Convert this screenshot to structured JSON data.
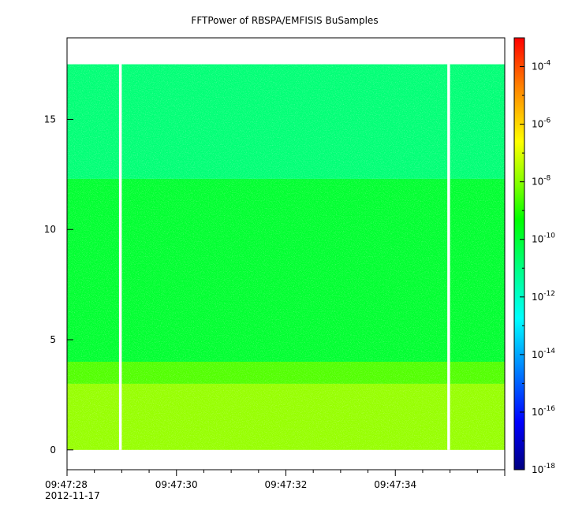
{
  "chart_data": {
    "type": "heatmap",
    "title": "FFTPower of RBSPA/EMFISIS  BuSamples",
    "xlabel": "",
    "ylabel": "",
    "x_tick_labels": [
      "09:47:28",
      "09:47:30",
      "09:47:32",
      "09:47:34"
    ],
    "x_tick_seconds": [
      28,
      30,
      32,
      34
    ],
    "x_date_label": "2012-11-17",
    "xlim_seconds": [
      28,
      36.0
    ],
    "y_ticks": [
      0,
      5,
      10,
      15
    ],
    "ylim": [
      -0.9,
      18.7
    ],
    "data_y_range": [
      0,
      17.5
    ],
    "data_gaps_seconds": [
      [
        28.95,
        29.0
      ],
      [
        34.95,
        35.0
      ]
    ],
    "colorbar": {
      "scale": "log",
      "range": [
        1e-18,
        0.001
      ],
      "tick_base": "10",
      "tick_exponents": [
        "-4",
        "-6",
        "-8",
        "-10",
        "-12",
        "-14",
        "-16",
        "-18"
      ],
      "tick_values": [
        -4,
        -6,
        -8,
        -10,
        -12,
        -14,
        -16,
        -18
      ],
      "colormap": [
        "#00007f",
        "#0000ff",
        "#007fff",
        "#00ffff",
        "#00ff7f",
        "#00ff00",
        "#7fff00",
        "#ffff00",
        "#ff7f00",
        "#ff0000"
      ]
    },
    "power_bands": [
      {
        "y_min": 12.3,
        "y_max": 17.5,
        "log_power": -11.2
      },
      {
        "y_min": 4.0,
        "y_max": 12.3,
        "log_power": -10.3
      },
      {
        "y_min": 3.0,
        "y_max": 4.0,
        "log_power": -8.6
      },
      {
        "y_min": 0.0,
        "y_max": 3.0,
        "log_power": -7.7
      }
    ],
    "grid": false,
    "legend": "none"
  }
}
